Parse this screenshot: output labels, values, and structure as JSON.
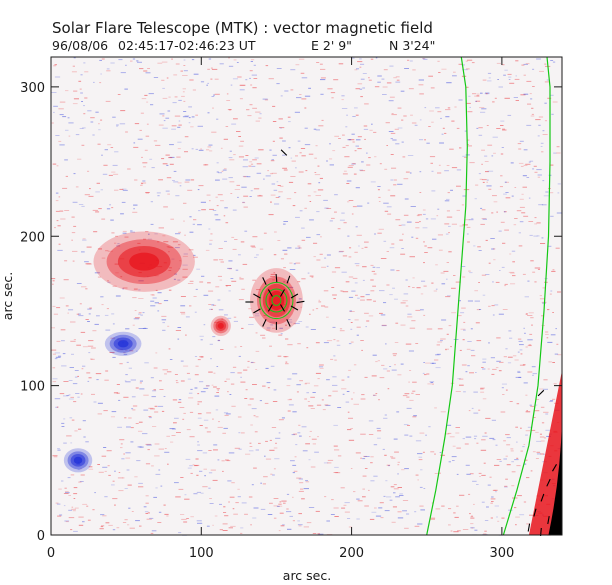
{
  "chart_data": {
    "type": "heatmap",
    "title": "Solar Flare Telescope (MTK) : vector magnetic field",
    "subtitle": {
      "date": "96/08/06",
      "time_range": "02:45:17-02:46:23 UT",
      "position_ew": "E 2' 9\"",
      "position_ns": "N 3'24\""
    },
    "xlabel": "arc sec.",
    "ylabel": "arc sec.",
    "xlim": [
      0,
      340
    ],
    "ylim": [
      0,
      320
    ],
    "xticks": [
      0,
      100,
      200,
      300
    ],
    "yticks": [
      0,
      100,
      200,
      300
    ],
    "colors": {
      "positive_polarity": "#e8141c",
      "negative_polarity": "#2030d8",
      "contour": "#14c814",
      "vectors": "#000000",
      "off_disk": "#000000",
      "background": "#f6f3f4"
    },
    "features": [
      {
        "name": "sunspot",
        "polarity": "positive",
        "center": [
          150,
          157
        ],
        "radius": [
          13,
          16
        ]
      },
      {
        "name": "plage-patch",
        "polarity": "positive",
        "center": [
          62,
          183
        ],
        "radius": [
          25,
          15
        ]
      },
      {
        "name": "small-positive-patch",
        "polarity": "positive",
        "center": [
          113,
          140
        ],
        "radius": [
          5,
          5
        ]
      },
      {
        "name": "negative-patch-1",
        "polarity": "negative",
        "center": [
          48,
          128
        ],
        "radius": [
          9,
          6
        ]
      },
      {
        "name": "negative-patch-2",
        "polarity": "negative",
        "center": [
          18,
          50
        ],
        "radius": [
          7,
          6
        ]
      },
      {
        "name": "limb-region",
        "polarity": "positive",
        "x_range": [
          318,
          340
        ],
        "y_range": [
          0,
          110
        ]
      }
    ],
    "contour_lines": [
      {
        "name": "contour-left",
        "points": [
          [
            250,
            0
          ],
          [
            256,
            30
          ],
          [
            262,
            65
          ],
          [
            267,
            100
          ],
          [
            270,
            140
          ],
          [
            273,
            180
          ],
          [
            276,
            220
          ],
          [
            277,
            260
          ],
          [
            276,
            300
          ],
          [
            273,
            320
          ]
        ]
      },
      {
        "name": "contour-right",
        "points": [
          [
            301,
            0
          ],
          [
            310,
            30
          ],
          [
            318,
            60
          ],
          [
            324,
            100
          ],
          [
            328,
            150
          ],
          [
            331,
            200
          ],
          [
            332,
            250
          ],
          [
            332,
            300
          ],
          [
            330,
            320
          ]
        ]
      }
    ],
    "vectors": [
      {
        "x": 142,
        "y": 170,
        "angle": 115
      },
      {
        "x": 150,
        "y": 172,
        "angle": 95
      },
      {
        "x": 158,
        "y": 171,
        "angle": 70
      },
      {
        "x": 137,
        "y": 160,
        "angle": 150
      },
      {
        "x": 146,
        "y": 162,
        "angle": 120
      },
      {
        "x": 154,
        "y": 162,
        "angle": 60
      },
      {
        "x": 162,
        "y": 160,
        "angle": 30
      },
      {
        "x": 137,
        "y": 150,
        "angle": 210
      },
      {
        "x": 146,
        "y": 152,
        "angle": 240
      },
      {
        "x": 154,
        "y": 152,
        "angle": 300
      },
      {
        "x": 162,
        "y": 152,
        "angle": 330
      },
      {
        "x": 142,
        "y": 142,
        "angle": 245
      },
      {
        "x": 150,
        "y": 140,
        "angle": 270
      },
      {
        "x": 158,
        "y": 142,
        "angle": 295
      },
      {
        "x": 166,
        "y": 156,
        "angle": 10
      },
      {
        "x": 132,
        "y": 156,
        "angle": 180
      },
      {
        "x": 155,
        "y": 256,
        "angle": 135
      },
      {
        "x": 326,
        "y": 95,
        "angle": 45
      },
      {
        "x": 318,
        "y": 5,
        "angle": 80
      },
      {
        "x": 322,
        "y": 15,
        "angle": 75
      },
      {
        "x": 327,
        "y": 25,
        "angle": 70
      },
      {
        "x": 331,
        "y": 35,
        "angle": 65
      },
      {
        "x": 335,
        "y": 45,
        "angle": 60
      },
      {
        "x": 326,
        "y": 2,
        "angle": 85
      },
      {
        "x": 331,
        "y": 10,
        "angle": 80
      },
      {
        "x": 336,
        "y": 20,
        "angle": 75
      }
    ]
  }
}
